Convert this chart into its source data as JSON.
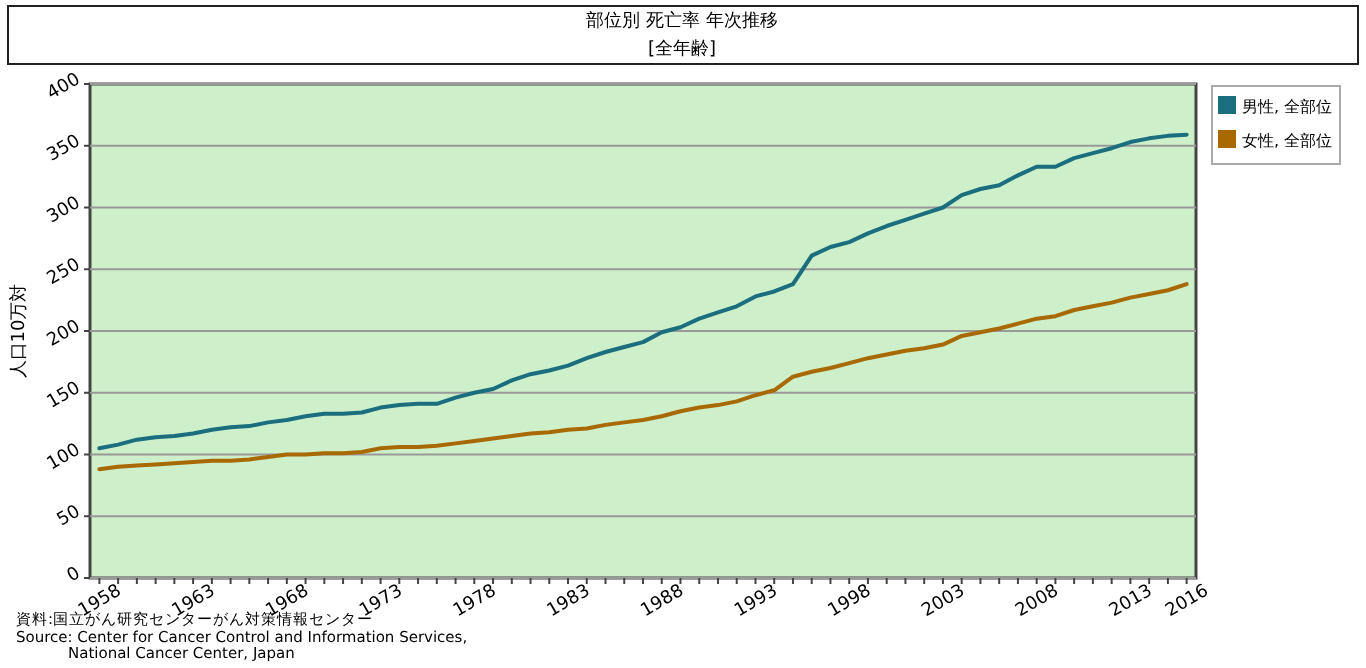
{
  "chart_data": {
    "type": "line",
    "title": "部位別 死亡率 年次推移",
    "subtitle": "[全年齢]",
    "ylabel": "人口10万対",
    "x": [
      1958,
      1959,
      1960,
      1961,
      1962,
      1963,
      1964,
      1965,
      1966,
      1967,
      1968,
      1969,
      1970,
      1971,
      1972,
      1973,
      1974,
      1975,
      1976,
      1977,
      1978,
      1979,
      1980,
      1981,
      1982,
      1983,
      1984,
      1985,
      1986,
      1987,
      1988,
      1989,
      1990,
      1991,
      1992,
      1993,
      1994,
      1995,
      1996,
      1997,
      1998,
      1999,
      2000,
      2001,
      2002,
      2003,
      2004,
      2005,
      2006,
      2007,
      2008,
      2009,
      2010,
      2011,
      2012,
      2013,
      2014,
      2015,
      2016
    ],
    "series": [
      {
        "name": "男性, 全部位",
        "color": "#1a6e7e",
        "values": [
          105,
          108,
          112,
          114,
          115,
          117,
          120,
          122,
          123,
          126,
          128,
          131,
          133,
          133,
          134,
          138,
          140,
          141,
          141,
          146,
          150,
          153,
          160,
          165,
          168,
          172,
          178,
          183,
          187,
          191,
          199,
          203,
          210,
          215,
          220,
          228,
          232,
          238,
          261,
          268,
          272,
          279,
          285,
          290,
          295,
          300,
          310,
          315,
          318,
          326,
          333,
          333,
          340,
          344,
          348,
          353,
          356,
          358,
          359
        ]
      },
      {
        "name": "女性, 全部位",
        "color": "#a86a00",
        "values": [
          88,
          90,
          91,
          92,
          93,
          94,
          95,
          95,
          96,
          98,
          100,
          100,
          101,
          101,
          102,
          105,
          106,
          106,
          107,
          109,
          111,
          113,
          115,
          117,
          118,
          120,
          121,
          124,
          126,
          128,
          131,
          135,
          138,
          140,
          143,
          148,
          152,
          163,
          167,
          170,
          174,
          178,
          181,
          184,
          186,
          189,
          196,
          199,
          202,
          206,
          210,
          212,
          217,
          220,
          223,
          227,
          230,
          233,
          238
        ]
      }
    ],
    "xlim": [
      1957.5,
      2016.5
    ],
    "xticks": [
      1958,
      {
        "value": 1959,
        "label": null
      },
      {
        "value": 1960,
        "label": null
      },
      {
        "value": 1961,
        "label": null
      },
      {
        "value": 1962,
        "label": null
      },
      1963,
      {
        "value": 1964,
        "label": null
      },
      {
        "value": 1965,
        "label": null
      },
      {
        "value": 1966,
        "label": null
      },
      {
        "value": 1967,
        "label": null
      },
      1968,
      {
        "value": 1969,
        "label": null
      },
      {
        "value": 1970,
        "label": null
      },
      {
        "value": 1971,
        "label": null
      },
      {
        "value": 1972,
        "label": null
      },
      1973,
      {
        "value": 1974,
        "label": null
      },
      {
        "value": 1975,
        "label": null
      },
      {
        "value": 1976,
        "label": null
      },
      {
        "value": 1977,
        "label": null
      },
      1978,
      {
        "value": 1979,
        "label": null
      },
      {
        "value": 1980,
        "label": null
      },
      {
        "value": 1981,
        "label": null
      },
      {
        "value": 1982,
        "label": null
      },
      1983,
      {
        "value": 1984,
        "label": null
      },
      {
        "value": 1985,
        "label": null
      },
      {
        "value": 1986,
        "label": null
      },
      {
        "value": 1987,
        "label": null
      },
      1988,
      {
        "value": 1989,
        "label": null
      },
      {
        "value": 1990,
        "label": null
      },
      {
        "value": 1991,
        "label": null
      },
      {
        "value": 1992,
        "label": null
      },
      1993,
      {
        "value": 1994,
        "label": null
      },
      {
        "value": 1995,
        "label": null
      },
      {
        "value": 1996,
        "label": null
      },
      {
        "value": 1997,
        "label": null
      },
      1998,
      {
        "value": 1999,
        "label": null
      },
      {
        "value": 2000,
        "label": null
      },
      {
        "value": 2001,
        "label": null
      },
      {
        "value": 2002,
        "label": null
      },
      2003,
      {
        "value": 2004,
        "label": null
      },
      {
        "value": 2005,
        "label": null
      },
      {
        "value": 2006,
        "label": null
      },
      {
        "value": 2007,
        "label": null
      },
      2008,
      {
        "value": 2009,
        "label": null
      },
      {
        "value": 2010,
        "label": null
      },
      {
        "value": 2011,
        "label": null
      },
      {
        "value": 2012,
        "label": null
      },
      2013,
      {
        "value": 2014,
        "label": null
      },
      {
        "value": 2015,
        "label": null
      },
      2016
    ],
    "ylim": [
      0,
      400
    ],
    "yticks": [
      0,
      50,
      100,
      150,
      200,
      250,
      300,
      350,
      400
    ],
    "grid": "y",
    "legend": "top right",
    "marker": "none",
    "line_style": "solid",
    "annotations": [
      "資料:国立がん研究センターがん対策情報センター",
      "Source: Center for Cancer Control and Information Services,\nNational Cancer Center, Japan"
    ]
  }
}
